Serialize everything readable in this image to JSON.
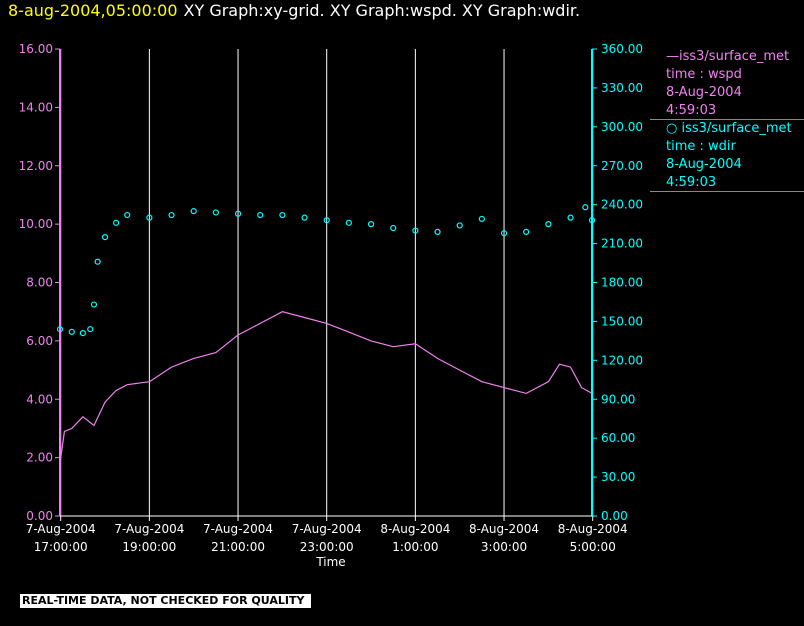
{
  "header": {
    "timestamp": "8-aug-2004,05:00:00",
    "titles": "XY Graph:xy-grid.  XY Graph:wspd.  XY Graph:wdir."
  },
  "legend": {
    "wspd": {
      "line1": "—iss3/surface_met",
      "line2": "time : wspd",
      "line3": "8-Aug-2004",
      "line4": "4:59:03"
    },
    "wdir": {
      "line1": "○ iss3/surface_met",
      "line2": "time : wdir",
      "line3": "8-Aug-2004",
      "line4": "4:59:03"
    }
  },
  "footer": "REAL-TIME DATA, NOT CHECKED FOR QUALITY",
  "colors": {
    "wspd": "#ee82ee",
    "wdir": "#00ffff",
    "grid": "#ffffff",
    "timestamp": "#ffff00"
  },
  "chart_data": {
    "type": "line",
    "xlabel": "Time",
    "x_range": [
      "7-Aug-2004 16:59:03",
      "8-Aug-2004 4:59:03"
    ],
    "x_ticks": [
      {
        "time": "7-Aug-2004 17:00:00",
        "label1": "7-Aug-2004",
        "label2": "17:00:00"
      },
      {
        "time": "7-Aug-2004 19:00:00",
        "label1": "7-Aug-2004",
        "label2": "19:00:00"
      },
      {
        "time": "7-Aug-2004 21:00:00",
        "label1": "7-Aug-2004",
        "label2": "21:00:00"
      },
      {
        "time": "7-Aug-2004 23:00:00",
        "label1": "7-Aug-2004",
        "label2": "23:00:00"
      },
      {
        "time": "8-Aug-2004 1:00:00",
        "label1": "8-Aug-2004",
        "label2": "1:00:00"
      },
      {
        "time": "8-Aug-2004 3:00:00",
        "label1": "8-Aug-2004",
        "label2": "3:00:00"
      },
      {
        "time": "8-Aug-2004 5:00:00",
        "label1": "8-Aug-2004",
        "label2": "5:00:00"
      }
    ],
    "grid": "vertical",
    "y_left": {
      "range": [
        0,
        16
      ],
      "ticks": [
        "0.00",
        "2.00",
        "4.00",
        "6.00",
        "8.00",
        "10.00",
        "12.00",
        "14.00",
        "16.00"
      ]
    },
    "y_right": {
      "range": [
        0,
        360
      ],
      "ticks": [
        "0.00",
        "30.00",
        "60.00",
        "90.00",
        "120.00",
        "150.00",
        "180.00",
        "210.00",
        "240.00",
        "270.00",
        "300.00",
        "330.00",
        "360.00"
      ]
    },
    "series": [
      {
        "name": "iss3/surface_met time : wspd",
        "style": "line",
        "axis": "left",
        "times": [
          "7-Aug-2004 16:59:03",
          "7-Aug-2004 17:05:00",
          "7-Aug-2004 17:15:00",
          "7-Aug-2004 17:30:00",
          "7-Aug-2004 17:45:00",
          "7-Aug-2004 18:00:00",
          "7-Aug-2004 18:15:00",
          "7-Aug-2004 18:30:00",
          "7-Aug-2004 19:00:00",
          "7-Aug-2004 19:30:00",
          "7-Aug-2004 20:00:00",
          "7-Aug-2004 20:30:00",
          "7-Aug-2004 21:00:00",
          "7-Aug-2004 21:30:00",
          "7-Aug-2004 22:00:00",
          "7-Aug-2004 22:30:00",
          "7-Aug-2004 23:00:00",
          "7-Aug-2004 23:30:00",
          "8-Aug-2004 0:00:00",
          "8-Aug-2004 0:30:00",
          "8-Aug-2004 1:00:00",
          "8-Aug-2004 1:30:00",
          "8-Aug-2004 2:00:00",
          "8-Aug-2004 2:30:00",
          "8-Aug-2004 3:00:00",
          "8-Aug-2004 3:30:00",
          "8-Aug-2004 4:00:00",
          "8-Aug-2004 4:15:00",
          "8-Aug-2004 4:30:00",
          "8-Aug-2004 4:45:00",
          "8-Aug-2004 4:59:03"
        ],
        "values": [
          1.8,
          2.9,
          3.0,
          3.4,
          3.1,
          3.9,
          4.3,
          4.5,
          4.6,
          5.1,
          5.4,
          5.6,
          6.2,
          6.6,
          7.0,
          6.8,
          6.6,
          6.3,
          6.0,
          5.8,
          5.9,
          5.4,
          5.0,
          4.6,
          4.4,
          4.2,
          4.6,
          5.2,
          5.1,
          4.4,
          4.2
        ]
      },
      {
        "name": "iss3/surface_met time : wdir",
        "style": "scatter",
        "axis": "right",
        "times": [
          "7-Aug-2004 16:59:03",
          "7-Aug-2004 17:15:00",
          "7-Aug-2004 17:30:00",
          "7-Aug-2004 17:40:00",
          "7-Aug-2004 17:45:00",
          "7-Aug-2004 17:50:00",
          "7-Aug-2004 18:00:00",
          "7-Aug-2004 18:15:00",
          "7-Aug-2004 18:30:00",
          "7-Aug-2004 19:00:00",
          "7-Aug-2004 19:30:00",
          "7-Aug-2004 20:00:00",
          "7-Aug-2004 20:30:00",
          "7-Aug-2004 21:00:00",
          "7-Aug-2004 21:30:00",
          "7-Aug-2004 22:00:00",
          "7-Aug-2004 22:30:00",
          "7-Aug-2004 23:00:00",
          "7-Aug-2004 23:30:00",
          "8-Aug-2004 0:00:00",
          "8-Aug-2004 0:30:00",
          "8-Aug-2004 1:00:00",
          "8-Aug-2004 1:30:00",
          "8-Aug-2004 2:00:00",
          "8-Aug-2004 2:30:00",
          "8-Aug-2004 3:00:00",
          "8-Aug-2004 3:30:00",
          "8-Aug-2004 4:00:00",
          "8-Aug-2004 4:30:00",
          "8-Aug-2004 4:50:00",
          "8-Aug-2004 4:59:03"
        ],
        "values": [
          144,
          142,
          141,
          144,
          163,
          196,
          215,
          226,
          232,
          230,
          232,
          235,
          234,
          233,
          232,
          232,
          230,
          228,
          226,
          225,
          222,
          220,
          219,
          224,
          229,
          218,
          219,
          225,
          230,
          238,
          228
        ]
      }
    ]
  }
}
